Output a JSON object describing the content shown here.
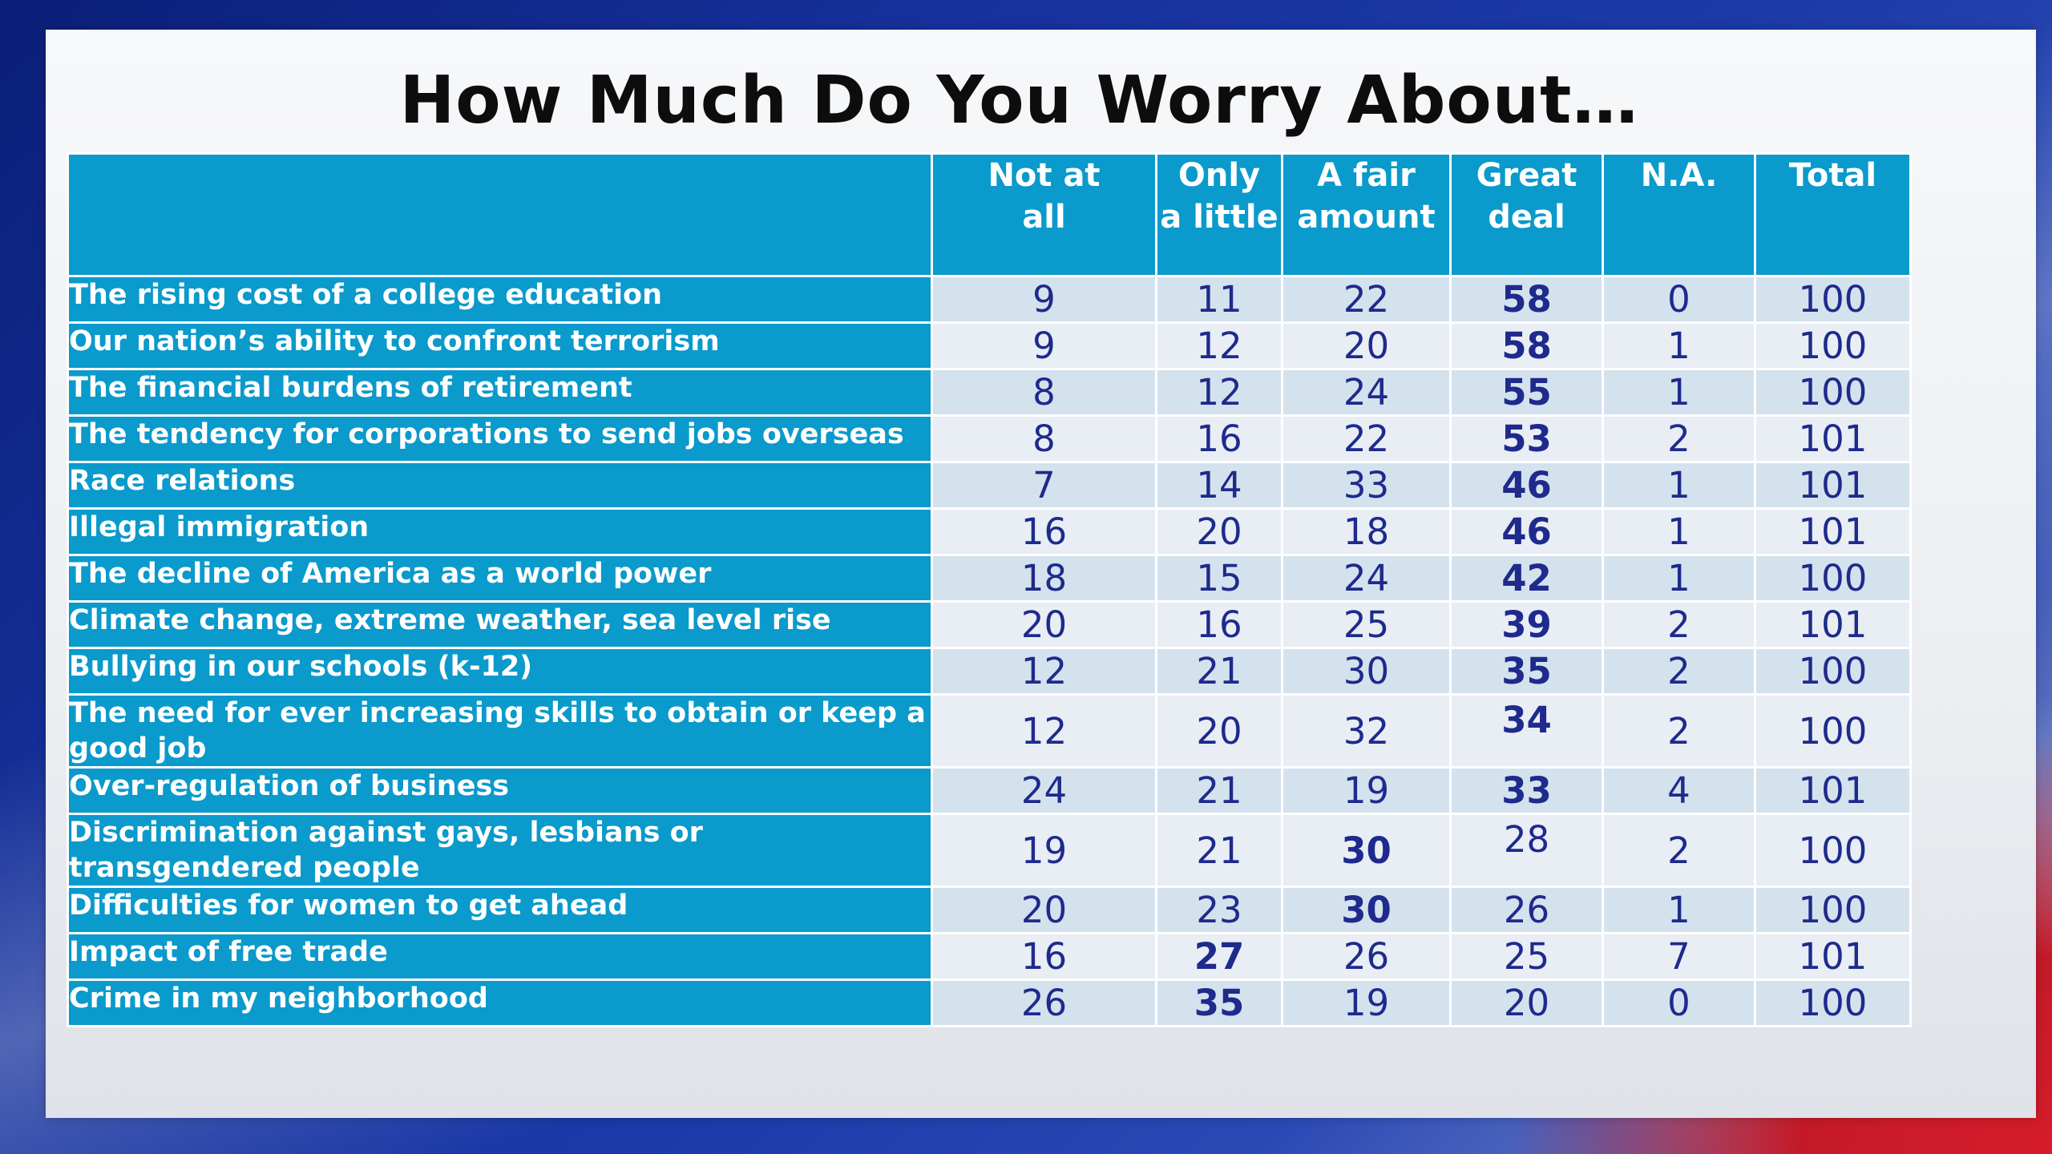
{
  "chart_data": {
    "type": "table",
    "title": "How Much Do You Worry About…",
    "columns": [
      "",
      "Not at all",
      "Only a little",
      "A fair amount",
      "Great deal",
      "N.A.",
      "Total"
    ],
    "header_lines": [
      [],
      [
        "Not at",
        "all"
      ],
      [
        "Only",
        "a little"
      ],
      [
        "A fair",
        "amount"
      ],
      [
        "Great",
        "deal"
      ],
      [
        "N.A."
      ],
      [
        "Total"
      ]
    ],
    "rows": [
      {
        "label": "The rising cost of a college education",
        "values": [
          9,
          11,
          22,
          58,
          0,
          100
        ],
        "bold": 3
      },
      {
        "label": "Our nation’s ability to confront terrorism",
        "values": [
          9,
          12,
          20,
          58,
          1,
          100
        ],
        "bold": 3
      },
      {
        "label": "The financial burdens of retirement",
        "values": [
          8,
          12,
          24,
          55,
          1,
          100
        ],
        "bold": 3
      },
      {
        "label": "The tendency for corporations to send jobs overseas",
        "values": [
          8,
          16,
          22,
          53,
          2,
          101
        ],
        "bold": 3
      },
      {
        "label": "Race relations",
        "values": [
          7,
          14,
          33,
          46,
          1,
          101
        ],
        "bold": 3
      },
      {
        "label": "Illegal immigration",
        "values": [
          16,
          20,
          18,
          46,
          1,
          101
        ],
        "bold": 3
      },
      {
        "label": "The decline of America as a world power",
        "values": [
          18,
          15,
          24,
          42,
          1,
          100
        ],
        "bold": 3
      },
      {
        "label": "Climate change, extreme weather, sea level rise",
        "values": [
          20,
          16,
          25,
          39,
          2,
          101
        ],
        "bold": 3
      },
      {
        "label": "Bullying in our schools (k-12)",
        "values": [
          12,
          21,
          30,
          35,
          2,
          100
        ],
        "bold": 3
      },
      {
        "label": "The need for ever increasing skills to obtain or keep a good job",
        "values": [
          12,
          20,
          32,
          34,
          2,
          100
        ],
        "bold": 3,
        "tall": true
      },
      {
        "label": "Over-regulation of business",
        "values": [
          24,
          21,
          19,
          33,
          4,
          101
        ],
        "bold": 3
      },
      {
        "label": "Discrimination against gays, lesbians or transgendered people",
        "values": [
          19,
          21,
          30,
          28,
          2,
          100
        ],
        "bold": 2,
        "tall": true
      },
      {
        "label": "Difficulties for women to get ahead",
        "values": [
          20,
          23,
          30,
          26,
          1,
          100
        ],
        "bold": 2
      },
      {
        "label": "Impact of free trade",
        "values": [
          16,
          27,
          26,
          25,
          7,
          101
        ],
        "bold": 1
      },
      {
        "label": "Crime in my neighborhood",
        "values": [
          26,
          35,
          19,
          20,
          0,
          100
        ],
        "bold": 1
      }
    ]
  }
}
